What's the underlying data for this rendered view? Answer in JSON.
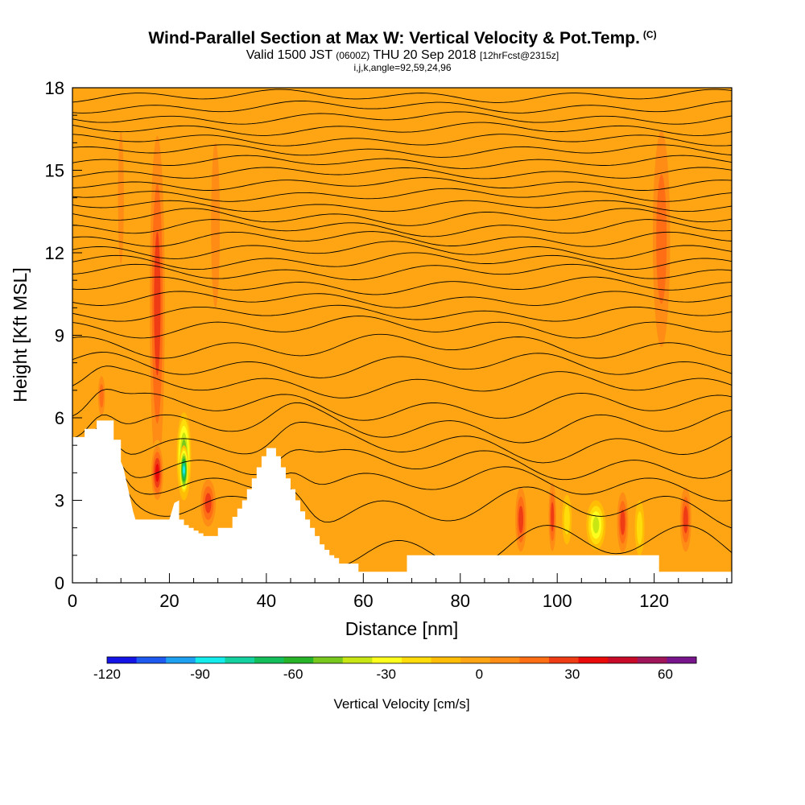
{
  "header": {
    "title": "Wind-Parallel Section at Max W: Vertical Velocity & Pot.Temp.",
    "copyright": "(C)",
    "valid_prefix": "Valid 1500 JST",
    "valid_utc": "(0600Z)",
    "valid_date": "THU 20 Sep 2018",
    "forecast": "[12hrFcst@2315z]",
    "params": "i,j,k,angle=92,59,24,96"
  },
  "chart_data": {
    "type": "heatmap",
    "xlabel": "Distance [nm]",
    "ylabel": "Height [Kft MSL]",
    "xlim": [
      0,
      136
    ],
    "ylim": [
      0,
      18
    ],
    "x_ticks": [
      0,
      20,
      40,
      60,
      80,
      100,
      120
    ],
    "y_ticks": [
      0,
      3,
      6,
      9,
      12,
      15,
      18
    ],
    "background_field": "Vertical Velocity",
    "background_level_cm_s": 0,
    "colorbar": {
      "title": "Vertical Velocity [cm/s]",
      "min": -120,
      "max": 70,
      "step": 10,
      "tick_values": [
        -120,
        -90,
        -60,
        -30,
        0,
        30,
        60
      ],
      "tick_labels": [
        "-120",
        "-90",
        "-60",
        "-30",
        "0",
        "30",
        "60"
      ],
      "colors": [
        "#1414e6",
        "#1e5af0",
        "#1ea0f0",
        "#14ebeb",
        "#14d2a0",
        "#14be5a",
        "#28b428",
        "#78c81e",
        "#c8e614",
        "#ffff1e",
        "#ffdc0a",
        "#ffbe05",
        "#ffa514",
        "#ff8c14",
        "#ff6e14",
        "#f03c14",
        "#eb0a0a",
        "#c80a28",
        "#a0145a",
        "#78148c"
      ]
    },
    "updrafts": [
      {
        "x_range": [
          15.5,
          19.5
        ],
        "y_range": [
          2.3,
          18
        ],
        "value": 35
      },
      {
        "x_range": [
          16,
          19
        ],
        "y_range": [
          2.8,
          5.2
        ],
        "value": 45
      },
      {
        "x_range": [
          26,
          30
        ],
        "y_range": [
          1.8,
          4.0
        ],
        "value": 40
      },
      {
        "x_range": [
          5,
          7
        ],
        "y_range": [
          5.8,
          7.8
        ],
        "value": 30
      },
      {
        "x_range": [
          91,
          94
        ],
        "y_range": [
          0.8,
          3.8
        ],
        "value": 35
      },
      {
        "x_range": [
          98,
          100
        ],
        "y_range": [
          0.8,
          4.0
        ],
        "value": 35
      },
      {
        "x_range": [
          112,
          115
        ],
        "y_range": [
          0.8,
          3.6
        ],
        "value": 35
      },
      {
        "x_range": [
          125,
          128
        ],
        "y_range": [
          0.8,
          3.8
        ],
        "value": 40
      },
      {
        "x_range": [
          119,
          124
        ],
        "y_range": [
          7,
          18
        ],
        "value": 30
      },
      {
        "x_range": [
          28,
          31
        ],
        "y_range": [
          8,
          18
        ],
        "value": 15
      },
      {
        "x_range": [
          9,
          11
        ],
        "y_range": [
          10,
          18
        ],
        "value": 15
      }
    ],
    "downdrafts": [
      {
        "x_range": [
          21.5,
          24.5
        ],
        "y_range": [
          3.0,
          6.2
        ],
        "value": -60
      },
      {
        "x_range": [
          22,
          24
        ],
        "y_range": [
          3.2,
          5.0
        ],
        "value": -90
      },
      {
        "x_range": [
          106,
          110
        ],
        "y_range": [
          1.2,
          3.0
        ],
        "value": -40
      },
      {
        "x_range": [
          101,
          103
        ],
        "y_range": [
          1.4,
          3.2
        ],
        "value": -20
      },
      {
        "x_range": [
          116,
          118
        ],
        "y_range": [
          1.0,
          3.0
        ],
        "value": -20
      }
    ],
    "terrain": {
      "x": [
        0,
        2.5,
        2.5,
        5,
        5,
        8.5,
        8.5,
        10,
        10,
        10.5,
        11,
        11.5,
        12,
        12.5,
        13,
        13.5,
        14,
        14.5,
        15,
        19,
        19,
        20,
        21,
        22,
        22,
        23,
        23,
        24,
        24,
        25,
        25,
        26,
        26,
        27,
        27,
        28,
        28,
        29,
        29,
        30,
        30,
        33,
        33,
        34,
        34,
        35,
        35,
        36,
        36,
        37,
        37,
        38,
        38,
        39,
        39,
        40,
        40,
        41,
        41,
        42,
        42,
        43,
        43,
        44,
        44,
        45,
        45,
        46,
        46,
        47,
        47,
        48,
        48,
        49,
        49,
        50,
        50,
        51,
        51,
        52,
        52,
        53,
        53,
        54,
        54,
        55,
        55,
        56,
        56,
        57,
        57,
        58,
        58,
        59,
        59,
        60,
        60,
        61,
        61,
        62,
        62,
        63,
        63,
        68,
        68,
        69,
        69,
        74,
        74,
        120,
        120,
        121,
        121,
        123,
        123,
        124,
        124,
        136
      ],
      "y": [
        5.3,
        5.3,
        5.6,
        5.6,
        5.9,
        5.9,
        5.2,
        5.2,
        4.4,
        4.2,
        3.8,
        3.4,
        3.0,
        2.6,
        2.3,
        2.3,
        2.3,
        2.3,
        2.3,
        2.3,
        2.3,
        2.3,
        2.9,
        3.0,
        2.3,
        2.3,
        2.1,
        2.1,
        2.0,
        2.0,
        1.9,
        1.9,
        1.8,
        1.8,
        1.7,
        1.7,
        1.7,
        1.7,
        1.7,
        1.7,
        2.0,
        2.0,
        2.4,
        2.4,
        2.7,
        2.7,
        3.0,
        3.0,
        3.4,
        3.4,
        3.8,
        3.8,
        4.2,
        4.2,
        4.6,
        4.6,
        4.9,
        4.9,
        4.9,
        4.9,
        4.6,
        4.6,
        4.2,
        4.2,
        3.8,
        3.8,
        3.4,
        3.4,
        3.0,
        3.0,
        2.6,
        2.6,
        2.3,
        2.3,
        2.0,
        2.0,
        1.7,
        1.7,
        1.4,
        1.4,
        1.2,
        1.2,
        1.0,
        1.0,
        0.9,
        0.9,
        0.7,
        0.7,
        0.7,
        0.7,
        0.7,
        0.7,
        0.7,
        0.7,
        0.4,
        0.4,
        0.4,
        0.4,
        0.4,
        0.4,
        0.4,
        0.4,
        0.4,
        0.4,
        0.4,
        0.4,
        1.0,
        1.0,
        1.0,
        1.0,
        1.0,
        1.0,
        0.4,
        0.4,
        0.4,
        0.4,
        0.4,
        0.4
      ]
    },
    "isentropes": [
      {
        "base_y": 1.3,
        "wiggle": 0.6
      },
      {
        "base_y": 2.7,
        "wiggle": 0.5
      },
      {
        "base_y": 3.6,
        "wiggle": 0.4
      },
      {
        "base_y": 4.3,
        "wiggle": 0.4
      },
      {
        "base_y": 5.0,
        "wiggle": 0.4
      },
      {
        "base_y": 5.7,
        "wiggle": 0.4
      },
      {
        "base_y": 6.4,
        "wiggle": 0.35
      },
      {
        "base_y": 7.2,
        "wiggle": 0.3
      },
      {
        "base_y": 7.9,
        "wiggle": 0.3
      },
      {
        "base_y": 8.6,
        "wiggle": 0.3
      },
      {
        "base_y": 9.3,
        "wiggle": 0.25
      },
      {
        "base_y": 9.8,
        "wiggle": 0.2
      },
      {
        "base_y": 10.3,
        "wiggle": 0.2
      },
      {
        "base_y": 10.8,
        "wiggle": 0.2
      },
      {
        "base_y": 11.3,
        "wiggle": 0.2
      },
      {
        "base_y": 11.7,
        "wiggle": 0.2
      },
      {
        "base_y": 12.1,
        "wiggle": 0.2
      },
      {
        "base_y": 12.5,
        "wiggle": 0.2
      },
      {
        "base_y": 12.9,
        "wiggle": 0.2
      },
      {
        "base_y": 13.3,
        "wiggle": 0.2
      },
      {
        "base_y": 13.7,
        "wiggle": 0.15
      },
      {
        "base_y": 14.1,
        "wiggle": 0.15
      },
      {
        "base_y": 14.5,
        "wiggle": 0.15
      },
      {
        "base_y": 14.9,
        "wiggle": 0.15
      },
      {
        "base_y": 15.3,
        "wiggle": 0.15
      },
      {
        "base_y": 15.7,
        "wiggle": 0.15
      },
      {
        "base_y": 16.1,
        "wiggle": 0.15
      },
      {
        "base_y": 16.5,
        "wiggle": 0.15
      },
      {
        "base_y": 16.9,
        "wiggle": 0.15
      },
      {
        "base_y": 17.3,
        "wiggle": 0.15
      },
      {
        "base_y": 17.7,
        "wiggle": 0.15
      }
    ]
  }
}
